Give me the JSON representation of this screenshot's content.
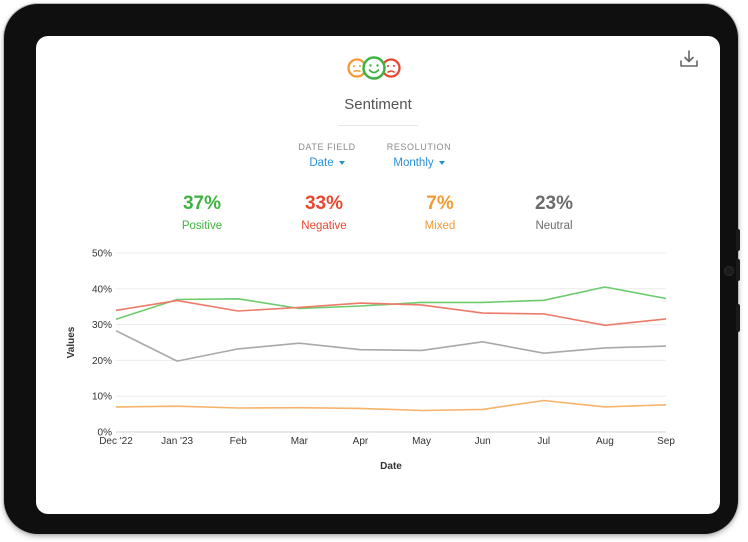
{
  "header": {
    "title": "Sentiment"
  },
  "selectors": [
    {
      "label": "DATE FIELD",
      "value": "Date"
    },
    {
      "label": "RESOLUTION",
      "value": "Monthly"
    }
  ],
  "stats": [
    {
      "value": "37%",
      "label": "Positive",
      "color": "#3fb33f"
    },
    {
      "value": "33%",
      "label": "Negative",
      "color": "#e8482f"
    },
    {
      "value": "7%",
      "label": "Mixed",
      "color": "#f39a32"
    },
    {
      "value": "23%",
      "label": "Neutral",
      "color": "#6b6b6b"
    }
  ],
  "chart_data": {
    "type": "line",
    "xlabel": "Date",
    "ylabel": "Values",
    "categories": [
      "Dec '22",
      "Jan '23",
      "Feb",
      "Mar",
      "Apr",
      "May",
      "Jun",
      "Jul",
      "Aug",
      "Sep"
    ],
    "ylim": [
      0,
      50
    ],
    "yticks": [
      "0%",
      "10%",
      "20%",
      "30%",
      "40%",
      "50%"
    ],
    "grid": true,
    "series": [
      {
        "name": "Positive",
        "color": "#6ccb6c",
        "values": [
          31.5,
          37,
          37.2,
          34.5,
          35.2,
          36.2,
          36.2,
          36.8,
          40.5,
          37.3
        ]
      },
      {
        "name": "Negative",
        "color": "#ee7b6a",
        "values": [
          34,
          36.7,
          33.8,
          34.8,
          36,
          35.5,
          33.2,
          33,
          29.8,
          31.6
        ]
      },
      {
        "name": "Mixed",
        "color": "#f7b36b",
        "values": [
          7,
          7.2,
          6.7,
          6.8,
          6.6,
          6,
          6.3,
          8.8,
          7,
          7.6
        ]
      },
      {
        "name": "Neutral",
        "color": "#a9a9a9",
        "values": [
          28.3,
          19.8,
          23.2,
          24.8,
          23,
          22.8,
          25.2,
          22,
          23.5,
          24
        ]
      }
    ]
  }
}
